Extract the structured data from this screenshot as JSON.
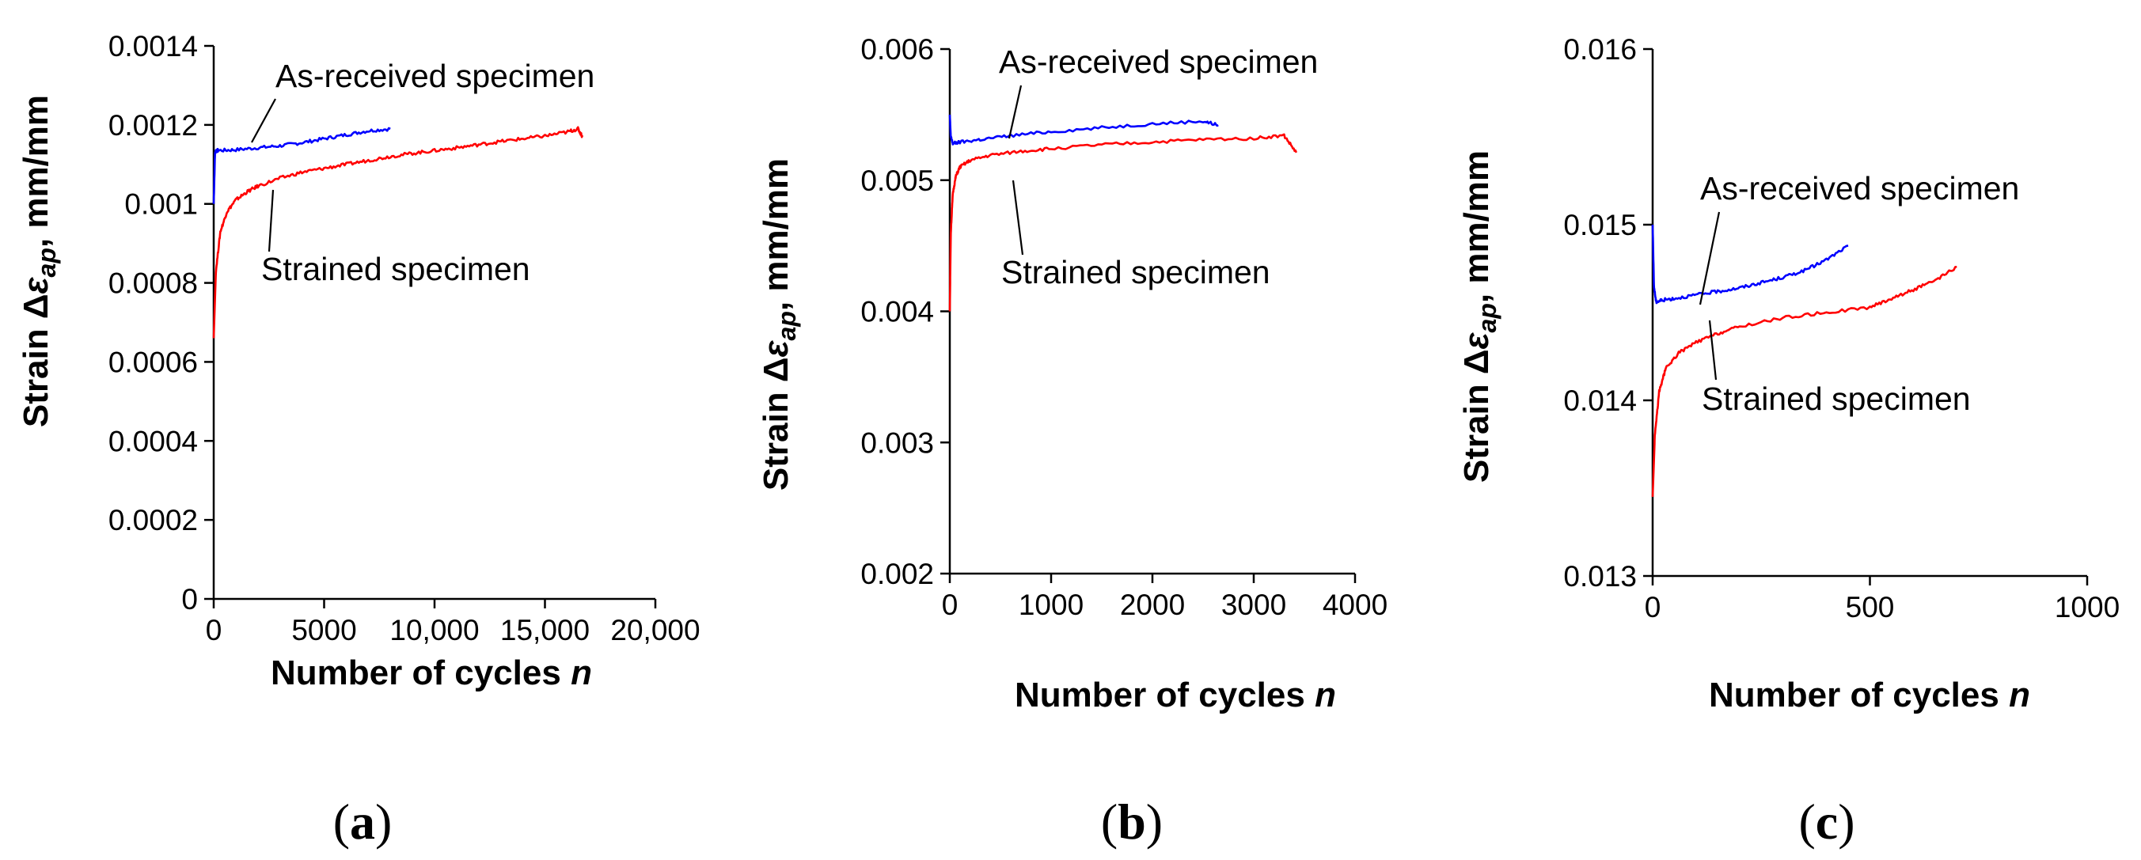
{
  "colors": {
    "as_received": "#0000ff",
    "strained": "#ff0000"
  },
  "chart_data": [
    {
      "type": "line",
      "panel_label": "(a)",
      "xlabel": "Number of cycles n",
      "ylabel": "Strain Δε_ap, mm/mm",
      "xlim": [
        0,
        20000
      ],
      "ylim": [
        0,
        0.0014
      ],
      "xticks": [
        "0",
        "5000",
        "10,000",
        "15,000",
        "20,000"
      ],
      "yticks": [
        "0",
        "0.0002",
        "0.0004",
        "0.0006",
        "0.0008",
        "0.001",
        "0.0012",
        "0.0014"
      ],
      "series": [
        {
          "name": "As-received specimen",
          "x": [
            0,
            60,
            120,
            200,
            1000,
            2000,
            3000,
            4000,
            5000,
            6000,
            7000,
            8000
          ],
          "y": [
            0.001,
            0.00113,
            0.001135,
            0.001135,
            0.001137,
            0.001142,
            0.001147,
            0.001155,
            0.001165,
            0.001175,
            0.001185,
            0.00119
          ]
        },
        {
          "name": "Strained specimen",
          "x": [
            0,
            100,
            300,
            600,
            1000,
            1500,
            2000,
            3000,
            4000,
            5000,
            6000,
            7000,
            8000,
            9000,
            10000,
            11000,
            12000,
            13000,
            14000,
            15000,
            16000,
            16500,
            16700
          ],
          "y": [
            0.00066,
            0.00083,
            0.00093,
            0.00098,
            0.00101,
            0.00103,
            0.001045,
            0.001065,
            0.00108,
            0.00109,
            0.0011,
            0.00111,
            0.00112,
            0.001128,
            0.001135,
            0.001142,
            0.00115,
            0.001158,
            0.001165,
            0.001172,
            0.001182,
            0.00119,
            0.00117
          ]
        }
      ],
      "annotations": [
        "As-received specimen",
        "Strained specimen"
      ]
    },
    {
      "type": "line",
      "panel_label": "(b)",
      "xlabel": "Number of cycles n",
      "ylabel": "Strain Δε_ap, mm/mm",
      "xlim": [
        0,
        4000
      ],
      "ylim": [
        0.002,
        0.006
      ],
      "xticks": [
        "0",
        "1000",
        "2000",
        "3000",
        "4000"
      ],
      "yticks": [
        "0.002",
        "0.003",
        "0.004",
        "0.005",
        "0.006"
      ],
      "series": [
        {
          "name": "As-received specimen",
          "x": [
            0,
            10,
            30,
            100,
            300,
            600,
            1000,
            1500,
            2000,
            2500,
            2650
          ],
          "y": [
            0.0055,
            0.00533,
            0.00528,
            0.00529,
            0.00531,
            0.00534,
            0.00537,
            0.0054,
            0.00543,
            0.00545,
            0.00542
          ]
        },
        {
          "name": "Strained specimen",
          "x": [
            0,
            10,
            30,
            60,
            100,
            200,
            400,
            700,
            1000,
            1500,
            2000,
            2500,
            3000,
            3300,
            3420
          ],
          "y": [
            0.004,
            0.0046,
            0.0049,
            0.00503,
            0.0051,
            0.00515,
            0.00519,
            0.00522,
            0.00524,
            0.00527,
            0.00529,
            0.00531,
            0.00532,
            0.00534,
            0.00521
          ]
        }
      ],
      "annotations": [
        "As-received specimen",
        "Strained specimen"
      ]
    },
    {
      "type": "line",
      "panel_label": "(c)",
      "xlabel": "Number of cycles n",
      "ylabel": "Strain Δε_ap, mm/mm",
      "xlim": [
        0,
        1000
      ],
      "ylim": [
        0.013,
        0.016
      ],
      "xticks": [
        "0",
        "500",
        "1000"
      ],
      "yticks": [
        "0.013",
        "0.014",
        "0.015",
        "0.016"
      ],
      "series": [
        {
          "name": "As-received specimen",
          "x": [
            0,
            3,
            8,
            20,
            50,
            100,
            150,
            200,
            250,
            300,
            350,
            400,
            450
          ],
          "y": [
            0.015,
            0.01465,
            0.01456,
            0.01457,
            0.01458,
            0.0146,
            0.01462,
            0.01464,
            0.01467,
            0.0147,
            0.01474,
            0.0148,
            0.01488
          ]
        },
        {
          "name": "Strained specimen",
          "x": [
            0,
            5,
            15,
            30,
            60,
            100,
            150,
            200,
            300,
            400,
            500,
            550,
            600,
            650,
            700
          ],
          "y": [
            0.01345,
            0.0138,
            0.01405,
            0.01418,
            0.01427,
            0.01433,
            0.01438,
            0.01442,
            0.01447,
            0.0145,
            0.01453,
            0.01458,
            0.01463,
            0.01468,
            0.01476
          ]
        }
      ],
      "annotations": [
        "As-received specimen",
        "Strained specimen"
      ]
    }
  ]
}
